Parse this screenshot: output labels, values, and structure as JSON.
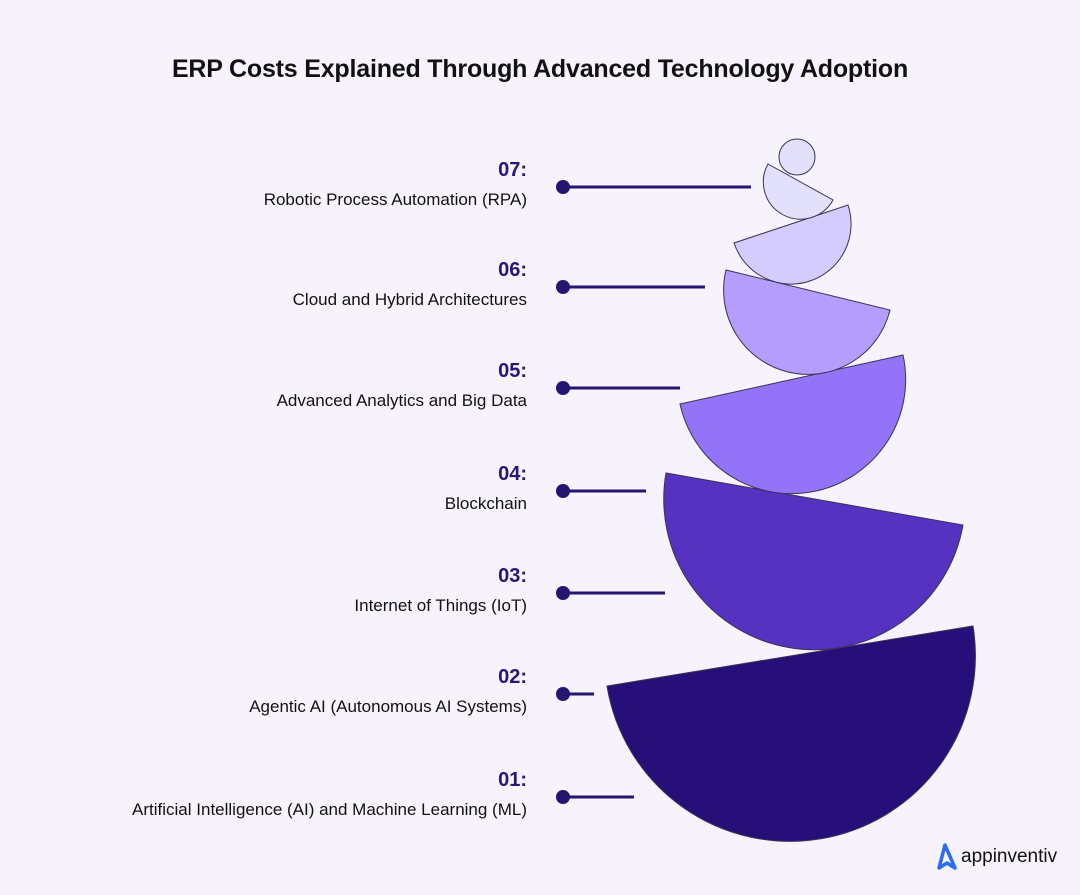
{
  "title": "ERP Costs Explained Through Advanced Technology Adoption",
  "items": [
    {
      "number": "07:",
      "label": "Robotic Process Automation (RPA)"
    },
    {
      "number": "06:",
      "label": "Cloud and Hybrid Architectures"
    },
    {
      "number": "05:",
      "label": "Advanced Analytics and Big Data"
    },
    {
      "number": "04:",
      "label": "Blockchain"
    },
    {
      "number": "03:",
      "label": "Internet of Things (IoT)"
    },
    {
      "number": "02:",
      "label": "Agentic AI (Autonomous AI Systems)"
    },
    {
      "number": "01:",
      "label": "Artificial Intelligence (AI) and Machine Learning (ML)"
    }
  ],
  "colors": {
    "background": "#f6f3fd",
    "connector": "#231570",
    "stack": [
      "#e3e0fb",
      "#e3e0fb",
      "#d4ccfc",
      "#b49dfd",
      "#9373f7",
      "#5533c0",
      "#260f78"
    ],
    "logo": "#2a6df4"
  },
  "logo": {
    "text": "appinventiv",
    "icon": "appinventiv-a-icon"
  }
}
